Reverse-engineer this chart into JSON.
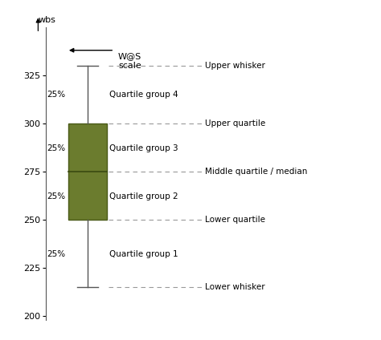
{
  "lower_whisker": 215,
  "lower_quartile": 250,
  "median": 275,
  "upper_quartile": 300,
  "upper_whisker": 330,
  "box_color": "#6b7c2e",
  "box_edge_color": "#4a5a18",
  "median_color": "#3a4a10",
  "whisker_color": "#555555",
  "cap_color": "#555555",
  "ylim": [
    198,
    350
  ],
  "yticks": [
    200,
    225,
    250,
    275,
    300,
    325
  ],
  "background_color": "#ffffff",
  "dashed_line_color": "#999999",
  "annotations_right": [
    {
      "y": 330,
      "label": "Upper whisker"
    },
    {
      "y": 300,
      "label": "Upper quartile"
    },
    {
      "y": 275,
      "label": "Middle quartile / median"
    },
    {
      "y": 250,
      "label": "Lower quartile"
    },
    {
      "y": 215,
      "label": "Lower whisker"
    }
  ],
  "pct_labels": [
    {
      "y": 315,
      "label": "25%"
    },
    {
      "y": 287,
      "label": "25%"
    },
    {
      "y": 262,
      "label": "25%"
    },
    {
      "y": 232,
      "label": "25%"
    }
  ],
  "quartile_labels": [
    {
      "y": 315,
      "label": "Quartile group 4"
    },
    {
      "y": 287,
      "label": "Quartile group 3"
    },
    {
      "y": 262,
      "label": "Quartile group 2"
    },
    {
      "y": 232,
      "label": "Quartile group 1"
    }
  ],
  "arrow_label": "W@S\nscale",
  "ylabel": "wbs"
}
